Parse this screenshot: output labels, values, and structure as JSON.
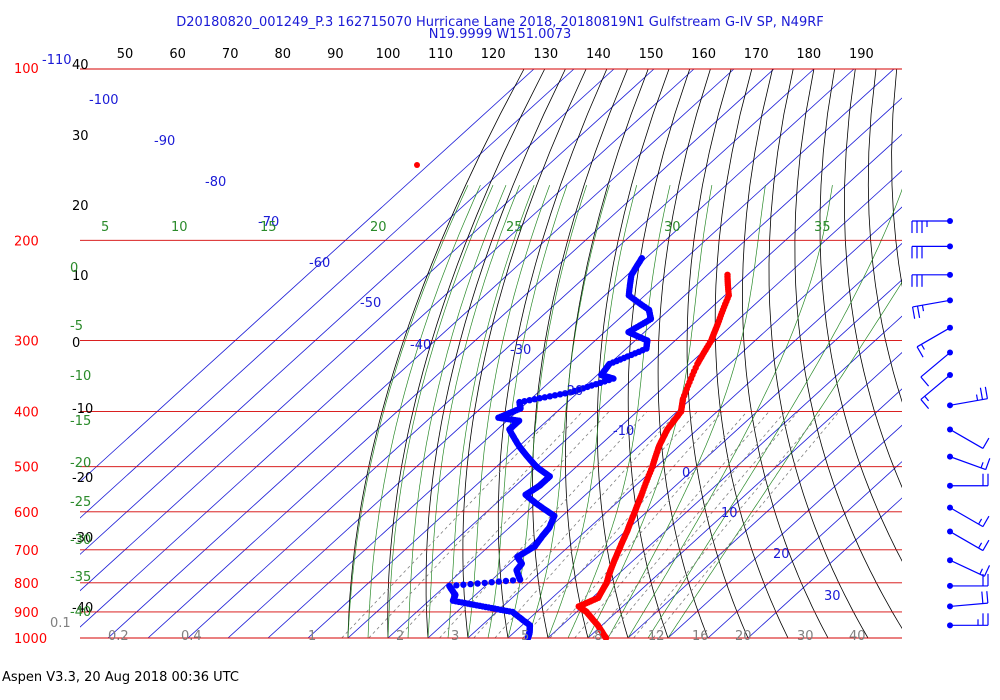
{
  "header": {
    "title_line1": "D20180820_001249_P.3 162715070 Hurricane Lane 2018, 20180819N1 Gulfstream G-IV SP, N49RF",
    "title_line2": "N19.9999 W151.0073"
  },
  "footer": {
    "text": "Aspen V3.3, 20 Aug 2018  00:36 UTC"
  },
  "colors": {
    "isobar": "#d40000",
    "temperature": "#ff0000",
    "dewpoint": "#0000ff",
    "isotherm": "#1a1ad6",
    "dry_adiabat": "#000000",
    "moist_adiabat": "#2a8a2a",
    "mixing_ratio": "#808080"
  },
  "chart_data": {
    "type": "scatter",
    "title": "D20180820_001249_P.3 162715070 Hurricane Lane 2018, 20180819N1 Gulfstream G-IV SP, N49RF",
    "subtitle": "N19.9999 W151.0073",
    "pressure_labels": [
      "100",
      "200",
      "300",
      "400",
      "500",
      "600",
      "700",
      "800",
      "900",
      "1000"
    ],
    "pressure_values": [
      100,
      200,
      300,
      400,
      500,
      600,
      700,
      800,
      900,
      1000
    ],
    "temperature_axis_labels": [
      "-110",
      "40",
      "30",
      "20",
      "10",
      "0",
      "-10",
      "-20",
      "-30",
      "-40"
    ],
    "top_axis_labels": [
      "50",
      "60",
      "70",
      "80",
      "90",
      "100",
      "110",
      "120",
      "130",
      "140",
      "150",
      "160",
      "170",
      "180",
      "190"
    ],
    "isotherm_labels": [
      "-100",
      "-90",
      "-80",
      "-70",
      "-60",
      "-50",
      "-40",
      "-30",
      "-20",
      "-10",
      "0",
      "10",
      "20",
      "30"
    ],
    "isotherm_values": [
      -100,
      -90,
      -80,
      -70,
      -60,
      -50,
      -40,
      -30,
      -20,
      -10,
      0,
      10,
      20,
      30
    ],
    "moist_adiabat_top_labels": [
      "5",
      "10",
      "15",
      "20",
      "25",
      "30",
      "35"
    ],
    "moist_adiabat_side_labels": [
      "0",
      "-5",
      "-10",
      "-15",
      "-20",
      "-25",
      "-30",
      "-35",
      "-40"
    ],
    "mixing_ratio_labels": [
      "0.1",
      "0.2",
      "0.4",
      "1",
      "2",
      "3",
      "5",
      "8",
      "12",
      "16",
      "20",
      "30",
      "40"
    ],
    "temperature_profile": [
      [
        230,
        -45.0
      ],
      [
        250,
        -39.0
      ],
      [
        280,
        -34.0
      ],
      [
        300,
        -31.0
      ],
      [
        330,
        -28.0
      ],
      [
        380,
        -22.0
      ],
      [
        400,
        -19.0
      ],
      [
        430,
        -17.5
      ],
      [
        460,
        -15.0
      ],
      [
        500,
        -11.0
      ],
      [
        560,
        -6.0
      ],
      [
        600,
        -3.0
      ],
      [
        650,
        0.5
      ],
      [
        700,
        3.5
      ],
      [
        760,
        7.0
      ],
      [
        800,
        9.5
      ],
      [
        850,
        11.5
      ],
      [
        880,
        9.0
      ],
      [
        900,
        12.5
      ],
      [
        950,
        19.0
      ],
      [
        1000,
        24.5
      ]
    ],
    "dewpoint_profile": [
      [
        215,
        -71.0
      ],
      [
        230,
        -69.0
      ],
      [
        250,
        -64.0
      ],
      [
        265,
        -55.0
      ],
      [
        275,
        -52.0
      ],
      [
        290,
        -54.0
      ],
      [
        300,
        -47.0
      ],
      [
        310,
        -45.0
      ],
      [
        330,
        -50.0
      ],
      [
        345,
        -49.0
      ],
      [
        350,
        -45.0
      ],
      [
        370,
        -52.0
      ],
      [
        385,
        -62.0
      ],
      [
        395,
        -60.0
      ],
      [
        410,
        -63.0
      ],
      [
        415,
        -57.0
      ],
      [
        430,
        -57.0
      ],
      [
        460,
        -50.0
      ],
      [
        480,
        -45.0
      ],
      [
        500,
        -40.0
      ],
      [
        520,
        -34.0
      ],
      [
        540,
        -34.0
      ],
      [
        560,
        -35.0
      ],
      [
        580,
        -30.0
      ],
      [
        610,
        -22.0
      ],
      [
        640,
        -20.0
      ],
      [
        660,
        -19.5
      ],
      [
        690,
        -18.5
      ],
      [
        720,
        -20.0
      ],
      [
        740,
        -17.0
      ],
      [
        760,
        -16.5
      ],
      [
        790,
        -13.0
      ],
      [
        810,
        -29.0
      ],
      [
        840,
        -25.0
      ],
      [
        860,
        -24.0
      ],
      [
        880,
        -15.0
      ],
      [
        900,
        -6.0
      ],
      [
        950,
        2.0
      ],
      [
        980,
        4.0
      ],
      [
        1000,
        5.0
      ]
    ],
    "wind_barbs": [
      {
        "pressure": 185,
        "dir": 270,
        "speed": 35
      },
      {
        "pressure": 205,
        "dir": 270,
        "speed": 30
      },
      {
        "pressure": 230,
        "dir": 270,
        "speed": 30
      },
      {
        "pressure": 255,
        "dir": 260,
        "speed": 25
      },
      {
        "pressure": 285,
        "dir": 240,
        "speed": 15
      },
      {
        "pressure": 315,
        "dir": 230,
        "speed": 10
      },
      {
        "pressure": 345,
        "dir": 230,
        "speed": 15
      },
      {
        "pressure": 390,
        "dir": 80,
        "speed": 25
      },
      {
        "pressure": 430,
        "dir": 120,
        "speed": 10
      },
      {
        "pressure": 480,
        "dir": 110,
        "speed": 15
      },
      {
        "pressure": 540,
        "dir": 90,
        "speed": 20
      },
      {
        "pressure": 590,
        "dir": 120,
        "speed": 15
      },
      {
        "pressure": 650,
        "dir": 120,
        "speed": 15
      },
      {
        "pressure": 730,
        "dir": 115,
        "speed": 15
      },
      {
        "pressure": 810,
        "dir": 90,
        "speed": 20
      },
      {
        "pressure": 880,
        "dir": 85,
        "speed": 20
      },
      {
        "pressure": 950,
        "dir": 90,
        "speed": 25
      }
    ]
  }
}
